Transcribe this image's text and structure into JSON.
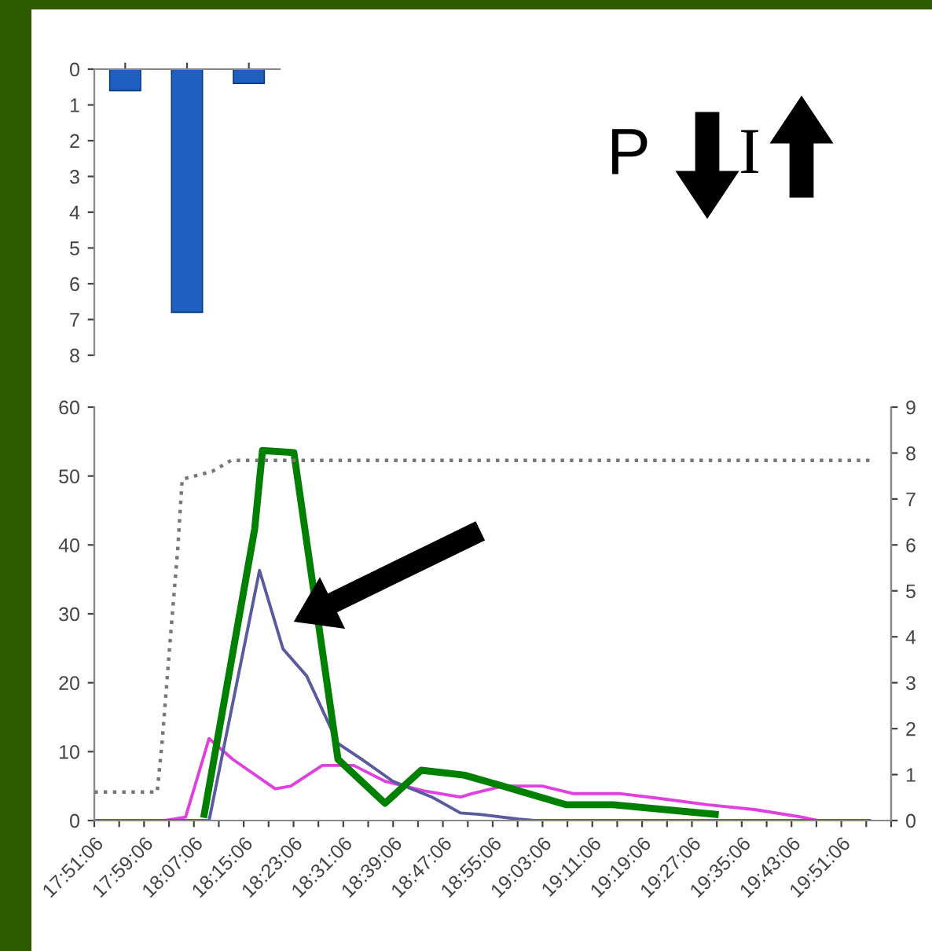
{
  "chart_data": [
    {
      "type": "bar",
      "categories": [
        null,
        null,
        null
      ],
      "values": [
        0.6,
        6.8,
        0.4
      ],
      "color": "#1f5fbf",
      "ylim": [
        8,
        0
      ],
      "yticks": [
        0,
        1,
        2,
        3,
        4,
        5,
        6,
        7,
        8
      ],
      "tick_labels": "y",
      "grid": false,
      "legend": false
    },
    {
      "type": "line",
      "annotations": [
        "P",
        "I"
      ],
      "xlim": [
        17.8517,
        19.985
      ],
      "xticks": [
        {
          "value": 17.8517,
          "label": "17:51:06"
        },
        {
          "value": 17.9183,
          "label": null
        },
        {
          "value": 17.985,
          "label": "17:59:06"
        },
        {
          "value": 18.0517,
          "label": null
        },
        {
          "value": 18.1183,
          "label": "18:07:06"
        },
        {
          "value": 18.185,
          "label": null
        },
        {
          "value": 18.2517,
          "label": "18:15:06"
        },
        {
          "value": 18.3183,
          "label": null
        },
        {
          "value": 18.385,
          "label": "18:23:06"
        },
        {
          "value": 18.4517,
          "label": null
        },
        {
          "value": 18.5183,
          "label": "18:31:06"
        },
        {
          "value": 18.585,
          "label": null
        },
        {
          "value": 18.6517,
          "label": "18:39:06"
        },
        {
          "value": 18.7183,
          "label": null
        },
        {
          "value": 18.785,
          "label": "18:47:06"
        },
        {
          "value": 18.8517,
          "label": null
        },
        {
          "value": 18.9183,
          "label": "18:55:06"
        },
        {
          "value": 18.985,
          "label": null
        },
        {
          "value": 19.0517,
          "label": "19:03:06"
        },
        {
          "value": 19.1183,
          "label": null
        },
        {
          "value": 19.185,
          "label": "19:11:06"
        },
        {
          "value": 19.2517,
          "label": null
        },
        {
          "value": 19.3183,
          "label": "19:19:06"
        },
        {
          "value": 19.385,
          "label": null
        },
        {
          "value": 19.4517,
          "label": "19:27:06"
        },
        {
          "value": 19.5183,
          "label": null
        },
        {
          "value": 19.585,
          "label": "19:35:06"
        },
        {
          "value": 19.6517,
          "label": null
        },
        {
          "value": 19.7183,
          "label": "19:43:06"
        },
        {
          "value": 19.785,
          "label": null
        },
        {
          "value": 19.8517,
          "label": "19:51:06"
        },
        {
          "value": 19.9183,
          "label": null
        },
        {
          "value": 19.985,
          "label": null
        }
      ],
      "ylim": [
        0,
        60
      ],
      "yticks": [
        0,
        10,
        20,
        30,
        40,
        50,
        60
      ],
      "y2lim": [
        0,
        9
      ],
      "y2ticks": [
        0,
        1,
        2,
        3,
        4,
        5,
        6,
        7,
        8,
        9
      ],
      "grid": false,
      "legend": false,
      "marker": "none",
      "series": [
        {
          "color": "#777777",
          "axis": "y2",
          "line_style": "dotted",
          "x": [
            17.852,
            18.02,
            18.033,
            18.054,
            18.075,
            18.087,
            18.167,
            18.218,
            19.927
          ],
          "values": [
            0.62,
            0.62,
            1.68,
            3.84,
            5.9,
            7.43,
            7.6,
            7.84,
            7.84
          ]
        },
        {
          "color": "#e040e0",
          "line_style": "solid",
          "x": [
            17.852,
            18.041,
            18.096,
            18.159,
            18.222,
            18.336,
            18.378,
            18.462,
            18.546,
            18.63,
            18.735,
            18.832,
            18.862,
            18.946,
            19.051,
            19.135,
            19.261,
            19.367,
            19.493,
            19.619,
            19.745,
            19.787,
            19.927
          ],
          "values": [
            0,
            0,
            0.5,
            11.9,
            8.9,
            4.6,
            5.0,
            8,
            8,
            5.7,
            4.3,
            3.4,
            3.9,
            5,
            5,
            3.9,
            3.9,
            3.2,
            2.3,
            1.6,
            0.5,
            0,
            0
          ]
        },
        {
          "color": "#5a5a9e",
          "line_style": "solid",
          "x": [
            17.852,
            18.159,
            18.294,
            18.357,
            18.42,
            18.504,
            18.567,
            18.651,
            18.756,
            18.832,
            18.883,
            18.988,
            19.03,
            19.927
          ],
          "values": [
            0,
            0,
            36.3,
            24.9,
            21,
            11.2,
            8.9,
            5.7,
            3.4,
            1.1,
            0.9,
            0.2,
            0,
            0
          ]
        },
        {
          "color": "#008000",
          "line_style": "solid",
          "x": [
            18.146,
            18.281,
            18.302,
            18.386,
            18.504,
            18.63,
            18.727,
            18.841,
            18.946,
            19.114,
            19.24,
            19.514
          ],
          "values": [
            0.9,
            42.3,
            53.7,
            53.4,
            8.9,
            2.5,
            7.3,
            6.6,
            5,
            2.3,
            2.3,
            0.9
          ]
        }
      ]
    }
  ]
}
